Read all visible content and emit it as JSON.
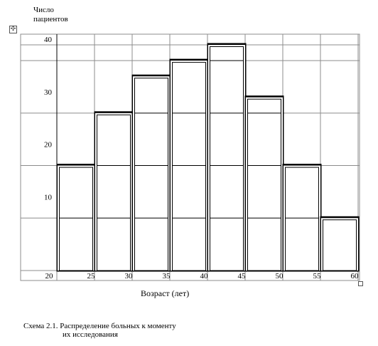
{
  "chart_data": {
    "type": "bar",
    "ylabel": [
      "Число",
      "пациентов"
    ],
    "xlabel": "Возраст (лет)",
    "caption": [
      "Схема 2.1. Распределение больных к моменту",
      "их исследования"
    ],
    "x_ticks": [
      "20",
      "25",
      "30",
      "35",
      "40",
      "45",
      "50",
      "55",
      "60"
    ],
    "y_ticks": [
      "10",
      "20",
      "30",
      "40"
    ],
    "ylim": [
      0,
      43
    ],
    "bins": [
      {
        "from": 20,
        "to": 25,
        "value": 20
      },
      {
        "from": 25,
        "to": 30,
        "value": 30
      },
      {
        "from": 30,
        "to": 35,
        "value": 37
      },
      {
        "from": 35,
        "to": 40,
        "value": 40
      },
      {
        "from": 40,
        "to": 45,
        "value": 43
      },
      {
        "from": 45,
        "to": 50,
        "value": 33
      },
      {
        "from": 50,
        "to": 55,
        "value": 20
      },
      {
        "from": 55,
        "to": 60,
        "value": 10
      }
    ],
    "grid": true
  }
}
